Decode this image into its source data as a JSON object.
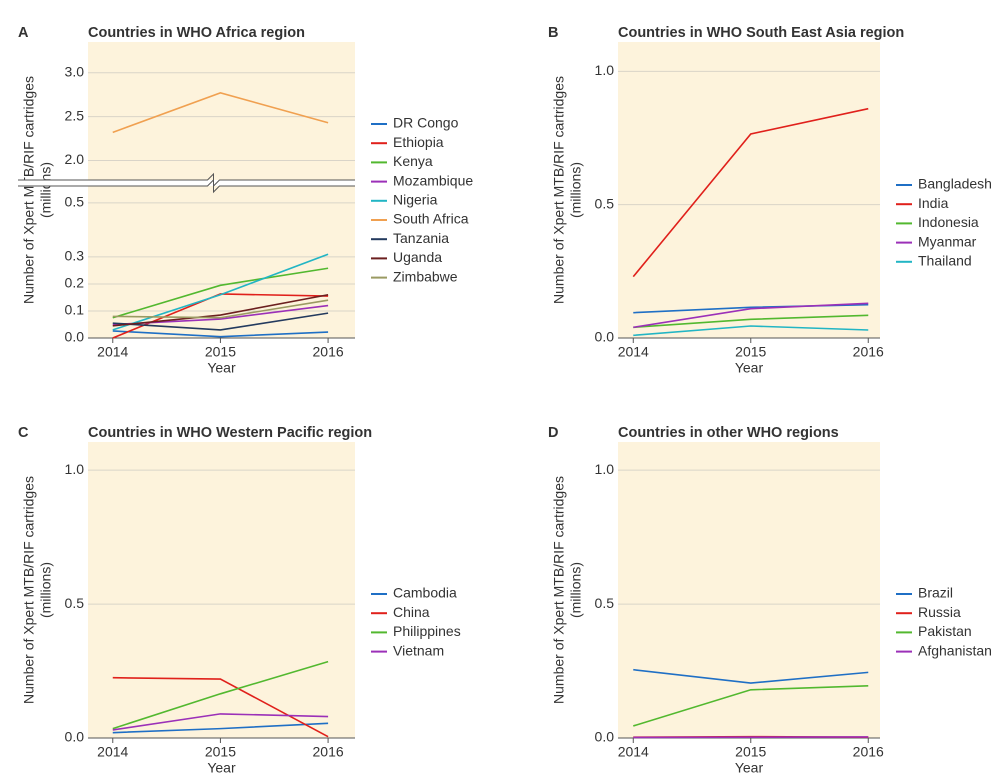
{
  "chart_data": [
    {
      "type": "line",
      "panel": "A",
      "title": "Countries in WHO Africa region",
      "xlabel": "Year",
      "ylabel": [
        "Number of Xpert MTB/RIF cartridges",
        "(millions)"
      ],
      "x": [
        2014,
        2015,
        2016
      ],
      "xlim": [
        2013.77,
        2016.25
      ],
      "xticks": [
        2014,
        2015,
        2016
      ],
      "ylim": [
        0,
        0.555
      ],
      "y_upper_lim": [
        1.8,
        3.35
      ],
      "yticks": [
        {
          "value": 0,
          "label": "0.0"
        },
        0.1,
        0.2,
        0.3,
        0.5,
        {
          "value": 2,
          "label": "2.0"
        },
        2.5,
        {
          "value": 3,
          "label": "3.0"
        }
      ],
      "grid": true,
      "legend": "right",
      "series": [
        {
          "name": "DR Congo",
          "color": "#1f6fc5",
          "values": [
            0.026,
            0.005,
            0.022
          ]
        },
        {
          "name": "Ethiopia",
          "color": "#e0201b",
          "values": [
            0.0,
            0.163,
            0.155
          ]
        },
        {
          "name": "Kenya",
          "color": "#52b82f",
          "values": [
            0.075,
            0.195,
            0.258
          ]
        },
        {
          "name": "Mozambique",
          "color": "#9b30b8",
          "values": [
            0.05,
            0.07,
            0.12
          ]
        },
        {
          "name": "Nigeria",
          "color": "#22b5c4",
          "values": [
            0.03,
            0.16,
            0.31
          ]
        },
        {
          "name": "South Africa",
          "color": "#f0a050",
          "values": [
            2.32,
            2.77,
            2.43
          ]
        },
        {
          "name": "Tanzania",
          "color": "#233a5e",
          "values": [
            0.055,
            0.03,
            0.092
          ]
        },
        {
          "name": "Uganda",
          "color": "#6b1f1f",
          "values": [
            0.045,
            0.085,
            0.16
          ]
        },
        {
          "name": "Zimbabwe",
          "color": "#9a9a62",
          "values": [
            0.08,
            0.075,
            0.14
          ]
        }
      ]
    },
    {
      "type": "line",
      "panel": "B",
      "title": "Countries in WHO South East Asia region",
      "xlabel": "Year",
      "ylabel": [
        "Number of Xpert MTB/RIF cartridges",
        "(millions)"
      ],
      "x": [
        2014,
        2015,
        2016
      ],
      "xlim": [
        2013.87,
        2016.1
      ],
      "xticks": [
        2014,
        2015,
        2016
      ],
      "ylim": [
        0,
        1.11
      ],
      "yticks": [
        {
          "value": 0,
          "label": "0.0"
        },
        0.5,
        {
          "value": 1,
          "label": "1.0"
        }
      ],
      "grid": true,
      "legend": "right",
      "series": [
        {
          "name": "Bangladesh",
          "color": "#1f6fc5",
          "values": [
            0.095,
            0.115,
            0.125
          ]
        },
        {
          "name": "India",
          "color": "#e0201b",
          "values": [
            0.23,
            0.765,
            0.86
          ]
        },
        {
          "name": "Indonesia",
          "color": "#52b82f",
          "values": [
            0.04,
            0.07,
            0.085
          ]
        },
        {
          "name": "Myanmar",
          "color": "#9b30b8",
          "values": [
            0.04,
            0.11,
            0.13
          ]
        },
        {
          "name": "Thailand",
          "color": "#22b5c4",
          "values": [
            0.01,
            0.045,
            0.03
          ]
        }
      ]
    },
    {
      "type": "line",
      "panel": "C",
      "title": "Countries in WHO Western Pacific region",
      "xlabel": "Year",
      "ylabel": [
        "Number of Xpert MTB/RIF cartridges",
        "(millions)"
      ],
      "x": [
        2014,
        2015,
        2016
      ],
      "xlim": [
        2013.77,
        2016.25
      ],
      "xticks": [
        2014,
        2015,
        2016
      ],
      "ylim": [
        0,
        1.105
      ],
      "yticks": [
        {
          "value": 0,
          "label": "0.0"
        },
        0.5,
        {
          "value": 1,
          "label": "1.0"
        }
      ],
      "grid": true,
      "legend": "right",
      "series": [
        {
          "name": "Cambodia",
          "color": "#1f6fc5",
          "values": [
            0.02,
            0.035,
            0.055
          ]
        },
        {
          "name": "China",
          "color": "#e0201b",
          "values": [
            0.225,
            0.22,
            0.005
          ]
        },
        {
          "name": "Philippines",
          "color": "#52b82f",
          "values": [
            0.035,
            0.165,
            0.285
          ]
        },
        {
          "name": "Vietnam",
          "color": "#9b30b8",
          "values": [
            0.03,
            0.09,
            0.08
          ]
        }
      ]
    },
    {
      "type": "line",
      "panel": "D",
      "title": "Countries in other WHO regions",
      "xlabel": "Year",
      "ylabel": [
        "Number of Xpert MTB/RIF cartridges",
        "(millions)"
      ],
      "x": [
        2014,
        2015,
        2016
      ],
      "xlim": [
        2013.87,
        2016.1
      ],
      "xticks": [
        2014,
        2015,
        2016
      ],
      "ylim": [
        0,
        1.105
      ],
      "yticks": [
        {
          "value": 0,
          "label": "0.0"
        },
        0.5,
        {
          "value": 1,
          "label": "1.0"
        }
      ],
      "grid": true,
      "legend": "right",
      "series": [
        {
          "name": "Brazil",
          "color": "#1f6fc5",
          "values": [
            0.255,
            0.205,
            0.245
          ]
        },
        {
          "name": "Russia",
          "color": "#e0201b",
          "values": [
            0.003,
            0.005,
            0.003
          ]
        },
        {
          "name": "Pakistan",
          "color": "#52b82f",
          "values": [
            0.045,
            0.18,
            0.195
          ]
        },
        {
          "name": "Afghanistan",
          "color": "#9b30b8",
          "values": [
            0.002,
            0.003,
            0.004
          ]
        }
      ]
    }
  ]
}
